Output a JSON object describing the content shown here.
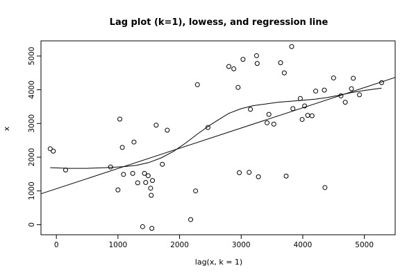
{
  "chart_data": {
    "type": "scatter",
    "title": "Lag plot (k=1), lowess, and regression line",
    "xlabel": "lag(x, k = 1)",
    "ylabel": "x",
    "xlim": [
      -250,
      5500
    ],
    "ylim": [
      -300,
      5450
    ],
    "x_ticks": [
      0,
      1000,
      2000,
      3000,
      4000,
      5000
    ],
    "y_ticks": [
      0,
      1000,
      2000,
      3000,
      4000,
      5000
    ],
    "grid": false,
    "legend": "none",
    "points": [
      {
        "x": -100,
        "y": 2250
      },
      {
        "x": -50,
        "y": 2180
      },
      {
        "x": 150,
        "y": 1620
      },
      {
        "x": 880,
        "y": 1710
      },
      {
        "x": 1000,
        "y": 1030
      },
      {
        "x": 1030,
        "y": 3130
      },
      {
        "x": 1070,
        "y": 2290
      },
      {
        "x": 1090,
        "y": 1490
      },
      {
        "x": 1240,
        "y": 1520
      },
      {
        "x": 1260,
        "y": 2450
      },
      {
        "x": 1320,
        "y": 1240
      },
      {
        "x": 1400,
        "y": -60
      },
      {
        "x": 1430,
        "y": 1520
      },
      {
        "x": 1450,
        "y": 1250
      },
      {
        "x": 1490,
        "y": 1450
      },
      {
        "x": 1530,
        "y": 1080
      },
      {
        "x": 1540,
        "y": 870
      },
      {
        "x": 1550,
        "y": -110
      },
      {
        "x": 1560,
        "y": 1310
      },
      {
        "x": 1620,
        "y": 2950
      },
      {
        "x": 1720,
        "y": 1790
      },
      {
        "x": 1800,
        "y": 2800
      },
      {
        "x": 2180,
        "y": 150
      },
      {
        "x": 2260,
        "y": 1000
      },
      {
        "x": 2290,
        "y": 4150
      },
      {
        "x": 2460,
        "y": 2880
      },
      {
        "x": 2800,
        "y": 4690
      },
      {
        "x": 2880,
        "y": 4620
      },
      {
        "x": 2950,
        "y": 4070
      },
      {
        "x": 2970,
        "y": 1540
      },
      {
        "x": 3030,
        "y": 4900
      },
      {
        "x": 3130,
        "y": 1550
      },
      {
        "x": 3150,
        "y": 3420
      },
      {
        "x": 3250,
        "y": 5010
      },
      {
        "x": 3260,
        "y": 4780
      },
      {
        "x": 3280,
        "y": 1420
      },
      {
        "x": 3420,
        "y": 3020
      },
      {
        "x": 3450,
        "y": 3270
      },
      {
        "x": 3530,
        "y": 2980
      },
      {
        "x": 3640,
        "y": 4800
      },
      {
        "x": 3700,
        "y": 4500
      },
      {
        "x": 3730,
        "y": 1440
      },
      {
        "x": 3820,
        "y": 5280
      },
      {
        "x": 3840,
        "y": 3440
      },
      {
        "x": 3960,
        "y": 3740
      },
      {
        "x": 3990,
        "y": 3120
      },
      {
        "x": 4030,
        "y": 3520
      },
      {
        "x": 4080,
        "y": 3240
      },
      {
        "x": 4150,
        "y": 3230
      },
      {
        "x": 4210,
        "y": 3960
      },
      {
        "x": 4350,
        "y": 3990
      },
      {
        "x": 4360,
        "y": 1100
      },
      {
        "x": 4500,
        "y": 4350
      },
      {
        "x": 4620,
        "y": 3820
      },
      {
        "x": 4690,
        "y": 3630
      },
      {
        "x": 4790,
        "y": 4030
      },
      {
        "x": 4820,
        "y": 4340
      },
      {
        "x": 4920,
        "y": 3850
      },
      {
        "x": 5280,
        "y": 4210
      }
    ],
    "lowess": [
      {
        "x": -100,
        "y": 1690
      },
      {
        "x": 200,
        "y": 1670
      },
      {
        "x": 500,
        "y": 1670
      },
      {
        "x": 800,
        "y": 1690
      },
      {
        "x": 1100,
        "y": 1720
      },
      {
        "x": 1300,
        "y": 1760
      },
      {
        "x": 1500,
        "y": 1840
      },
      {
        "x": 1700,
        "y": 1980
      },
      {
        "x": 1900,
        "y": 2170
      },
      {
        "x": 2100,
        "y": 2420
      },
      {
        "x": 2300,
        "y": 2700
      },
      {
        "x": 2500,
        "y": 2960
      },
      {
        "x": 2700,
        "y": 3190
      },
      {
        "x": 2800,
        "y": 3300
      },
      {
        "x": 3000,
        "y": 3440
      },
      {
        "x": 3200,
        "y": 3530
      },
      {
        "x": 3400,
        "y": 3580
      },
      {
        "x": 3600,
        "y": 3630
      },
      {
        "x": 3800,
        "y": 3660
      },
      {
        "x": 4000,
        "y": 3690
      },
      {
        "x": 4200,
        "y": 3720
      },
      {
        "x": 4400,
        "y": 3770
      },
      {
        "x": 4600,
        "y": 3840
      },
      {
        "x": 4800,
        "y": 3920
      },
      {
        "x": 5000,
        "y": 3980
      },
      {
        "x": 5280,
        "y": 4050
      }
    ],
    "regression": {
      "x": [
        -250,
        5500
      ],
      "y": [
        915,
        4365
      ]
    }
  }
}
